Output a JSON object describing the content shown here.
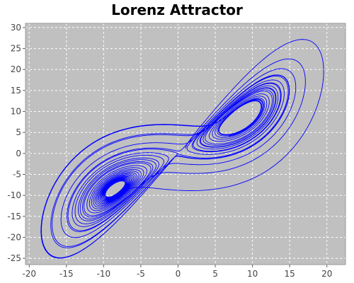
{
  "chart_data": {
    "type": "line",
    "title": "Lorenz Attractor",
    "xlabel": "",
    "ylabel": "",
    "xlim": [
      -20.5,
      22.5
    ],
    "ylim": [
      -26.5,
      31
    ],
    "x_ticks": [
      -20,
      -15,
      -10,
      -5,
      0,
      5,
      10,
      15,
      20
    ],
    "y_ticks": [
      30,
      25,
      20,
      15,
      10,
      5,
      0,
      -5,
      -10,
      -15,
      -20,
      -25
    ],
    "grid": true,
    "plot_background": "#c0c0c0",
    "series": [
      {
        "color": "#0000ff",
        "generator": "lorenz",
        "parameters": {
          "sigma": 10,
          "rho": 28,
          "beta": 2.6667
        },
        "initial_state": [
          1,
          1,
          1
        ],
        "step": 0.005,
        "steps": 7000,
        "projection": [
          "x",
          "y"
        ],
        "values": []
      }
    ]
  }
}
